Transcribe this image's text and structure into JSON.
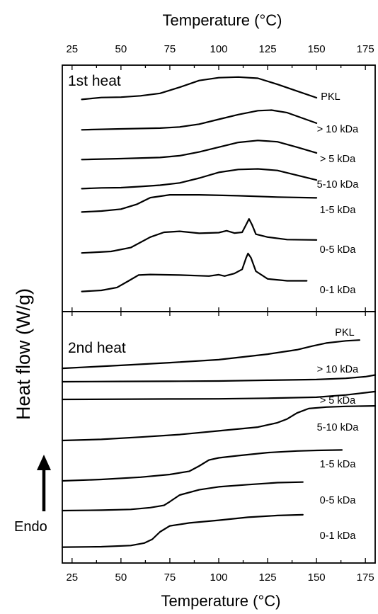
{
  "chart_data": {
    "type": "line",
    "top_axis_label": "Temperature (°C)",
    "bottom_axis_label": "Temperature (°C)",
    "ylabel": "Heat flow (W/g)",
    "endo_label": "Endo",
    "top_axis": {
      "range": [
        20,
        180
      ],
      "ticks": [
        "25",
        "50",
        "75",
        "100",
        "125",
        "150",
        "175"
      ]
    },
    "bottom_axis": {
      "range": [
        20,
        180
      ],
      "ticks": [
        "25",
        "50",
        "75",
        "100",
        "125",
        "150",
        "175"
      ]
    },
    "y_units": "arbitrary (curves vertically offset)",
    "panels": [
      {
        "title": "1st heat",
        "series": [
          {
            "name": "PKL",
            "points": [
              [
                30,
                -0.9
              ],
              [
                40,
                0.1
              ],
              [
                50,
                0.3
              ],
              [
                60,
                1.0
              ],
              [
                70,
                2.3
              ],
              [
                80,
                5.5
              ],
              [
                90,
                9.0
              ],
              [
                100,
                10.5
              ],
              [
                110,
                10.8
              ],
              [
                120,
                10.2
              ],
              [
                130,
                7.0
              ],
              [
                140,
                3.5
              ],
              [
                150,
                0.0
              ]
            ]
          },
          {
            "name": "> 10 kDa",
            "points": [
              [
                30,
                -0.5
              ],
              [
                50,
                0.0
              ],
              [
                70,
                0.4
              ],
              [
                80,
                1.0
              ],
              [
                90,
                2.5
              ],
              [
                100,
                5.0
              ],
              [
                110,
                7.5
              ],
              [
                120,
                9.5
              ],
              [
                127,
                9.8
              ],
              [
                135,
                8.5
              ],
              [
                150,
                3.0
              ]
            ]
          },
          {
            "name": "> 5 kDa",
            "points": [
              [
                30,
                -0.5
              ],
              [
                50,
                0.0
              ],
              [
                70,
                0.6
              ],
              [
                80,
                1.5
              ],
              [
                90,
                3.5
              ],
              [
                100,
                6.0
              ],
              [
                110,
                8.5
              ],
              [
                120,
                9.5
              ],
              [
                130,
                8.8
              ],
              [
                140,
                6.0
              ],
              [
                150,
                3.0
              ]
            ]
          },
          {
            "name": "5-10 kDa",
            "points": [
              [
                30,
                -0.5
              ],
              [
                40,
                -0.1
              ],
              [
                50,
                0.0
              ],
              [
                60,
                0.6
              ],
              [
                70,
                1.3
              ],
              [
                80,
                2.5
              ],
              [
                90,
                5.0
              ],
              [
                100,
                8.0
              ],
              [
                110,
                9.5
              ],
              [
                120,
                9.8
              ],
              [
                130,
                9.0
              ],
              [
                140,
                6.5
              ],
              [
                150,
                4.0
              ]
            ]
          },
          {
            "name": "1-5 kDa",
            "points": [
              [
                30,
                -0.5
              ],
              [
                40,
                0.0
              ],
              [
                50,
                1.0
              ],
              [
                58,
                3.5
              ],
              [
                65,
                7.0
              ],
              [
                75,
                8.5
              ],
              [
                90,
                8.5
              ],
              [
                110,
                8.0
              ],
              [
                130,
                7.3
              ],
              [
                150,
                6.9
              ]
            ]
          },
          {
            "name": "0-5 kDa",
            "points": [
              [
                30,
                -0.8
              ],
              [
                45,
                0.0
              ],
              [
                55,
                2.0
              ],
              [
                65,
                7.5
              ],
              [
                72,
                10.0
              ],
              [
                80,
                10.5
              ],
              [
                90,
                9.5
              ],
              [
                100,
                9.8
              ],
              [
                104,
                10.8
              ],
              [
                108,
                9.6
              ],
              [
                112,
                10.0
              ],
              [
                114,
                14.0
              ],
              [
                115.5,
                17.0
              ],
              [
                117,
                14.0
              ],
              [
                119,
                9.0
              ],
              [
                125,
                7.5
              ],
              [
                135,
                6.2
              ],
              [
                150,
                6.0
              ]
            ]
          },
          {
            "name": "0-1 kDa",
            "points": [
              [
                30,
                -0.6
              ],
              [
                40,
                0.0
              ],
              [
                48,
                1.5
              ],
              [
                54,
                5.0
              ],
              [
                59,
                8.0
              ],
              [
                65,
                8.3
              ],
              [
                80,
                8.0
              ],
              [
                95,
                7.5
              ],
              [
                100,
                8.2
              ],
              [
                103,
                7.5
              ],
              [
                108,
                8.8
              ],
              [
                112,
                11.0
              ],
              [
                114,
                17.0
              ],
              [
                115,
                19.3
              ],
              [
                116.5,
                17.0
              ],
              [
                119,
                10.0
              ],
              [
                125,
                6.0
              ],
              [
                135,
                5.0
              ],
              [
                145,
                5.0
              ]
            ]
          }
        ]
      },
      {
        "title": "2nd heat",
        "series": [
          {
            "name": "PKL",
            "points": [
              [
                20,
                -1.0
              ],
              [
                50,
                1.0
              ],
              [
                75,
                2.8
              ],
              [
                100,
                4.8
              ],
              [
                125,
                8.5
              ],
              [
                140,
                11.5
              ],
              [
                148,
                14.0
              ],
              [
                155,
                16.0
              ],
              [
                165,
                17.5
              ],
              [
                172,
                18.0
              ]
            ]
          },
          {
            "name": "> 10 kDa",
            "points": [
              [
                20,
                0.0
              ],
              [
                50,
                0.2
              ],
              [
                75,
                0.3
              ],
              [
                100,
                0.5
              ],
              [
                125,
                1.0
              ],
              [
                150,
                1.5
              ],
              [
                165,
                2.3
              ],
              [
                175,
                3.4
              ],
              [
                180,
                4.5
              ]
            ]
          },
          {
            "name": "> 5 kDa",
            "points": [
              [
                20,
                0.0
              ],
              [
                75,
                0.3
              ],
              [
                100,
                0.4
              ],
              [
                125,
                0.8
              ],
              [
                150,
                1.5
              ],
              [
                165,
                3.0
              ],
              [
                175,
                4.5
              ],
              [
                180,
                5.3
              ]
            ]
          },
          {
            "name": "5-10 kDa",
            "points": [
              [
                20,
                -0.5
              ],
              [
                40,
                0.3
              ],
              [
                60,
                1.8
              ],
              [
                80,
                3.5
              ],
              [
                100,
                6.0
              ],
              [
                120,
                8.5
              ],
              [
                130,
                11.5
              ],
              [
                135,
                14.0
              ],
              [
                140,
                18.0
              ],
              [
                146,
                21.0
              ],
              [
                155,
                22.0
              ],
              [
                165,
                22.5
              ],
              [
                180,
                22.8
              ]
            ]
          },
          {
            "name": "1-5 kDa",
            "points": [
              [
                20,
                -0.5
              ],
              [
                40,
                0.5
              ],
              [
                60,
                2.0
              ],
              [
                75,
                3.8
              ],
              [
                85,
                6.0
              ],
              [
                90,
                9.5
              ],
              [
                95,
                13.5
              ],
              [
                100,
                15.0
              ],
              [
                110,
                16.5
              ],
              [
                125,
                18.5
              ],
              [
                140,
                19.6
              ],
              [
                150,
                20.0
              ],
              [
                163,
                20.3
              ]
            ]
          },
          {
            "name": "0-5 kDa",
            "points": [
              [
                20,
                0.0
              ],
              [
                40,
                0.3
              ],
              [
                55,
                0.8
              ],
              [
                65,
                2.0
              ],
              [
                72,
                3.5
              ],
              [
                75,
                6.0
              ],
              [
                80,
                10.5
              ],
              [
                90,
                14.0
              ],
              [
                100,
                16.0
              ],
              [
                115,
                17.5
              ],
              [
                130,
                18.8
              ],
              [
                143,
                19.2
              ]
            ]
          },
          {
            "name": "0-1 kDa",
            "points": [
              [
                20,
                -0.3
              ],
              [
                40,
                0.0
              ],
              [
                55,
                0.8
              ],
              [
                62,
                2.5
              ],
              [
                66,
                5.0
              ],
              [
                70,
                10.0
              ],
              [
                75,
                14.0
              ],
              [
                85,
                16.0
              ],
              [
                100,
                17.8
              ],
              [
                115,
                19.8
              ],
              [
                130,
                21.0
              ],
              [
                143,
                21.5
              ]
            ]
          }
        ]
      }
    ]
  }
}
